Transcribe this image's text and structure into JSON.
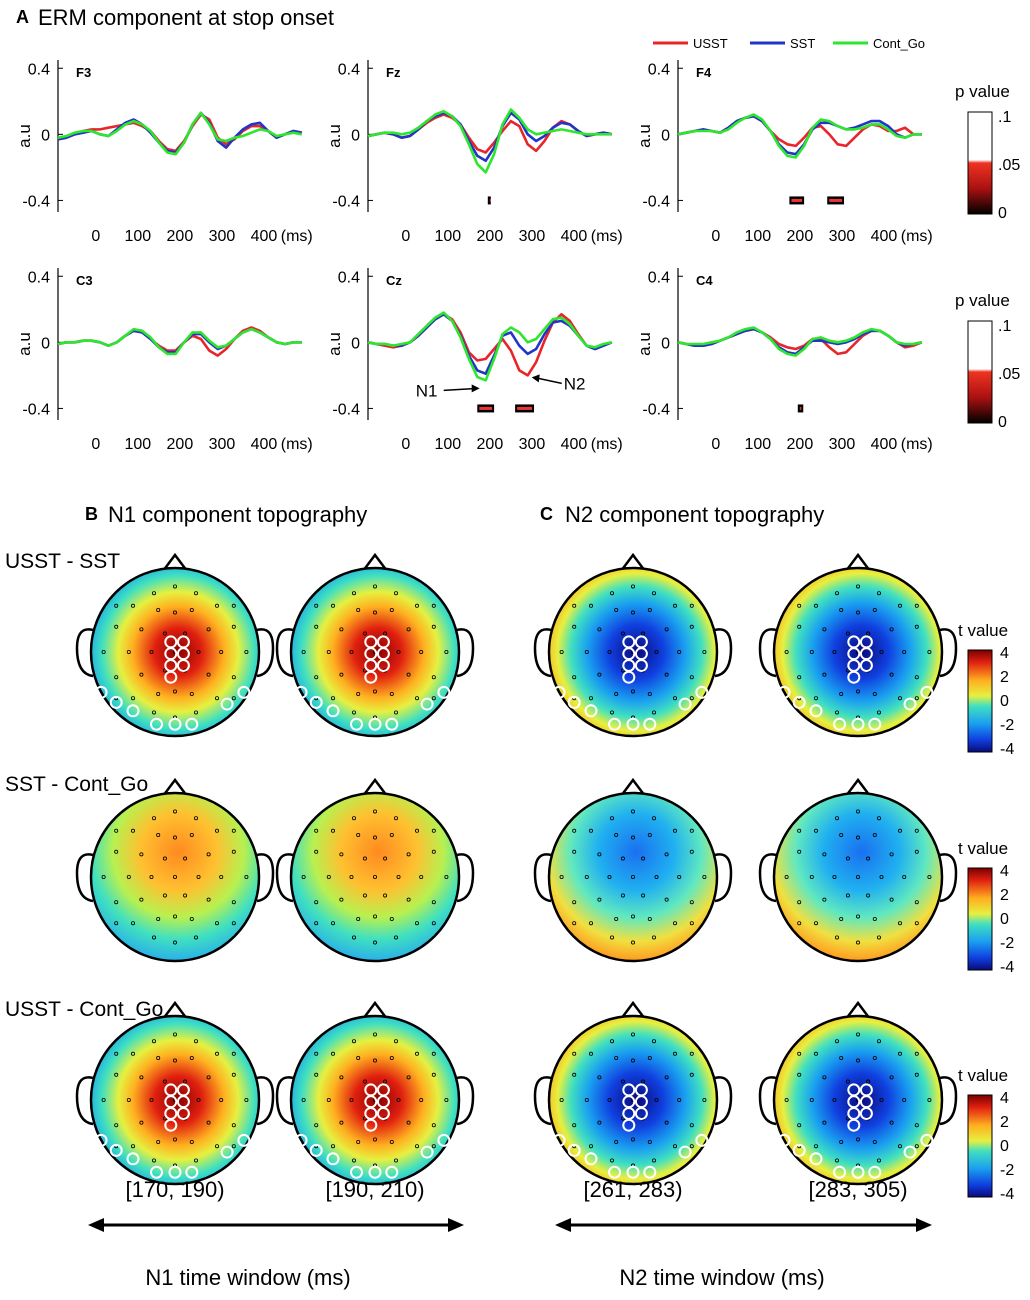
{
  "panel_a": {
    "letter": "A",
    "title": "ERM component at stop onset"
  },
  "panel_b": {
    "letter": "B",
    "title": "N1 component topography"
  },
  "panel_c": {
    "letter": "C",
    "title": "N2 component topography"
  },
  "legend": [
    {
      "label": "USST",
      "color": "#e8262a"
    },
    {
      "label": "SST",
      "color": "#2235c8"
    },
    {
      "label": "Cont_Go",
      "color": "#2ee62e"
    }
  ],
  "erm_axes": {
    "ylabel": "a.u",
    "yticks": [
      "0.4",
      "0",
      "-0.4"
    ],
    "xticks": [
      "0",
      "100",
      "200",
      "300",
      "400"
    ],
    "xunit": "(ms)",
    "xlim": [
      -90,
      500
    ],
    "ylim": [
      -0.47,
      0.45
    ]
  },
  "channels": [
    {
      "name": "F3",
      "sig_bars": []
    },
    {
      "name": "Fz",
      "sig_bars": [
        [
          195,
          200
        ]
      ]
    },
    {
      "name": "F4",
      "sig_bars": [
        [
          175,
          210
        ],
        [
          265,
          305
        ]
      ]
    },
    {
      "name": "C3",
      "sig_bars": []
    },
    {
      "name": "Cz",
      "sig_bars": [
        [
          170,
          210
        ],
        [
          260,
          305
        ]
      ],
      "annotations": [
        "N1",
        "N2"
      ]
    },
    {
      "name": "C4",
      "sig_bars": [
        [
          195,
          208
        ]
      ]
    }
  ],
  "chart_data": [
    {
      "type": "line",
      "title": "ERM component at stop onset",
      "xlabel": "(ms)",
      "ylabel": "a.u",
      "ylim": [
        -0.47,
        0.45
      ],
      "x": [
        -90,
        -70,
        -50,
        -30,
        -10,
        10,
        30,
        50,
        70,
        90,
        110,
        130,
        150,
        170,
        190,
        210,
        230,
        250,
        270,
        290,
        310,
        330,
        350,
        370,
        390,
        410,
        430,
        450,
        470,
        490
      ],
      "panels": [
        {
          "channel": "F3",
          "series": [
            {
              "name": "USST",
              "values": [
                -0.03,
                -0.02,
                0.0,
                0.02,
                0.03,
                0.03,
                0.04,
                0.05,
                0.06,
                0.07,
                0.05,
                0.02,
                -0.04,
                -0.09,
                -0.1,
                -0.04,
                0.05,
                0.12,
                0.09,
                -0.02,
                -0.06,
                -0.03,
                0.02,
                0.05,
                0.05,
                0.02,
                -0.02,
                0.0,
                0.02,
                0.01
              ]
            },
            {
              "name": "SST",
              "values": [
                -0.03,
                -0.02,
                0.0,
                0.01,
                0.02,
                0.0,
                -0.01,
                0.03,
                0.07,
                0.09,
                0.06,
                0.01,
                -0.05,
                -0.1,
                -0.11,
                -0.05,
                0.06,
                0.13,
                0.07,
                -0.04,
                -0.08,
                -0.02,
                0.03,
                0.06,
                0.07,
                0.02,
                -0.02,
                0.0,
                0.02,
                0.01
              ]
            },
            {
              "name": "Cont_Go",
              "values": [
                -0.02,
                -0.01,
                0.01,
                0.02,
                0.02,
                0.0,
                -0.01,
                0.02,
                0.06,
                0.08,
                0.06,
                0.02,
                -0.05,
                -0.11,
                -0.12,
                -0.05,
                0.06,
                0.13,
                0.06,
                -0.03,
                -0.04,
                -0.02,
                -0.01,
                0.01,
                0.03,
                0.02,
                -0.01,
                0.0,
                0.01,
                0.0
              ]
            }
          ]
        },
        {
          "channel": "Fz",
          "series": [
            {
              "name": "USST",
              "values": [
                -0.01,
                0.0,
                0.01,
                0.0,
                -0.02,
                -0.01,
                0.03,
                0.07,
                0.1,
                0.12,
                0.1,
                0.06,
                -0.02,
                -0.09,
                -0.11,
                -0.05,
                0.02,
                0.08,
                0.05,
                -0.06,
                -0.1,
                -0.04,
                0.04,
                0.08,
                0.06,
                0.02,
                -0.01,
                0.0,
                0.01,
                0.0
              ]
            },
            {
              "name": "SST",
              "values": [
                -0.01,
                0.0,
                0.01,
                0.0,
                -0.02,
                -0.01,
                0.03,
                0.08,
                0.11,
                0.13,
                0.11,
                0.06,
                -0.04,
                -0.13,
                -0.16,
                -0.08,
                0.05,
                0.13,
                0.09,
                0.0,
                -0.04,
                -0.01,
                0.04,
                0.07,
                0.06,
                0.02,
                -0.01,
                0.0,
                0.01,
                0.0
              ]
            },
            {
              "name": "Cont_Go",
              "values": [
                -0.01,
                0.0,
                0.01,
                0.01,
                0.0,
                0.01,
                0.04,
                0.08,
                0.12,
                0.14,
                0.11,
                0.05,
                -0.06,
                -0.18,
                -0.23,
                -0.12,
                0.06,
                0.15,
                0.1,
                0.03,
                0.0,
                0.01,
                0.02,
                0.03,
                0.02,
                0.01,
                0.0,
                0.0,
                0.0,
                0.0
              ]
            }
          ]
        },
        {
          "channel": "F4",
          "series": [
            {
              "name": "USST",
              "values": [
                0.0,
                0.01,
                0.02,
                0.03,
                0.02,
                0.01,
                0.04,
                0.08,
                0.1,
                0.11,
                0.08,
                0.02,
                -0.03,
                -0.06,
                -0.07,
                -0.02,
                0.04,
                0.05,
                0.0,
                -0.06,
                -0.07,
                -0.02,
                0.03,
                0.06,
                0.05,
                0.02,
                0.02,
                0.04,
                0.0,
                0.0
              ]
            },
            {
              "name": "SST",
              "values": [
                0.0,
                0.01,
                0.02,
                0.03,
                0.02,
                0.01,
                0.04,
                0.08,
                0.1,
                0.11,
                0.08,
                0.02,
                -0.06,
                -0.11,
                -0.12,
                -0.06,
                0.03,
                0.07,
                0.07,
                0.05,
                0.03,
                0.04,
                0.06,
                0.08,
                0.08,
                0.05,
                0.0,
                -0.02,
                0.0,
                0.0
              ]
            },
            {
              "name": "Cont_Go",
              "values": [
                0.0,
                0.01,
                0.02,
                0.02,
                0.02,
                0.01,
                0.03,
                0.07,
                0.1,
                0.12,
                0.09,
                0.02,
                -0.07,
                -0.13,
                -0.14,
                -0.07,
                0.04,
                0.09,
                0.08,
                0.05,
                0.03,
                0.03,
                0.04,
                0.06,
                0.06,
                0.03,
                -0.01,
                -0.02,
                0.0,
                0.0
              ]
            }
          ]
        },
        {
          "channel": "C3",
          "series": [
            {
              "name": "USST",
              "values": [
                -0.01,
                0.0,
                0.0,
                0.01,
                0.01,
                0.0,
                -0.02,
                0.0,
                0.04,
                0.07,
                0.06,
                0.02,
                -0.02,
                -0.05,
                -0.05,
                0.0,
                0.04,
                0.02,
                -0.05,
                -0.08,
                -0.04,
                0.02,
                0.07,
                0.09,
                0.07,
                0.03,
                0.0,
                -0.01,
                0.0,
                0.0
              ]
            },
            {
              "name": "SST",
              "values": [
                -0.01,
                0.0,
                0.0,
                0.01,
                0.01,
                0.0,
                -0.02,
                0.0,
                0.04,
                0.07,
                0.06,
                0.02,
                -0.03,
                -0.06,
                -0.06,
                0.0,
                0.05,
                0.05,
                0.0,
                -0.04,
                -0.02,
                0.02,
                0.06,
                0.08,
                0.06,
                0.03,
                0.0,
                -0.01,
                0.0,
                0.0
              ]
            },
            {
              "name": "Cont_Go",
              "values": [
                -0.01,
                0.0,
                0.0,
                0.01,
                0.01,
                0.0,
                -0.02,
                0.0,
                0.04,
                0.08,
                0.07,
                0.03,
                -0.03,
                -0.07,
                -0.07,
                0.0,
                0.06,
                0.06,
                0.01,
                -0.03,
                -0.02,
                0.02,
                0.06,
                0.08,
                0.06,
                0.03,
                0.0,
                -0.01,
                0.0,
                0.0
              ]
            }
          ]
        },
        {
          "channel": "Cz",
          "series": [
            {
              "name": "USST",
              "values": [
                0.0,
                -0.01,
                -0.02,
                -0.03,
                -0.02,
                0.0,
                0.04,
                0.09,
                0.14,
                0.17,
                0.14,
                0.06,
                -0.06,
                -0.11,
                -0.1,
                -0.04,
                0.02,
                -0.05,
                -0.17,
                -0.2,
                -0.12,
                0.01,
                0.12,
                0.17,
                0.13,
                0.05,
                -0.02,
                -0.04,
                -0.02,
                0.0
              ]
            },
            {
              "name": "SST",
              "values": [
                0.0,
                -0.01,
                -0.01,
                -0.02,
                -0.02,
                0.0,
                0.04,
                0.09,
                0.14,
                0.17,
                0.13,
                0.04,
                -0.08,
                -0.17,
                -0.19,
                -0.08,
                0.04,
                0.06,
                -0.02,
                -0.07,
                -0.04,
                0.05,
                0.12,
                0.13,
                0.1,
                0.04,
                -0.02,
                -0.04,
                -0.02,
                0.0
              ]
            },
            {
              "name": "Cont_Go",
              "values": [
                0.0,
                -0.01,
                -0.01,
                -0.02,
                -0.01,
                0.0,
                0.05,
                0.1,
                0.15,
                0.18,
                0.13,
                0.03,
                -0.1,
                -0.21,
                -0.23,
                -0.1,
                0.05,
                0.09,
                0.06,
                0.0,
                0.02,
                0.08,
                0.14,
                0.15,
                0.11,
                0.04,
                -0.02,
                -0.03,
                -0.01,
                0.0
              ]
            }
          ]
        },
        {
          "channel": "C4",
          "series": [
            {
              "name": "USST",
              "values": [
                0.0,
                -0.01,
                -0.02,
                -0.02,
                -0.01,
                0.01,
                0.03,
                0.05,
                0.07,
                0.08,
                0.06,
                0.03,
                -0.01,
                -0.03,
                -0.04,
                -0.02,
                0.02,
                0.02,
                -0.03,
                -0.07,
                -0.06,
                -0.01,
                0.04,
                0.07,
                0.07,
                0.04,
                0.0,
                -0.03,
                -0.02,
                0.0
              ]
            },
            {
              "name": "SST",
              "values": [
                0.0,
                -0.01,
                -0.02,
                -0.02,
                -0.01,
                0.01,
                0.03,
                0.05,
                0.07,
                0.08,
                0.06,
                0.02,
                -0.03,
                -0.06,
                -0.07,
                -0.03,
                0.01,
                0.01,
                0.0,
                -0.01,
                0.0,
                0.02,
                0.05,
                0.07,
                0.07,
                0.04,
                0.0,
                -0.02,
                -0.01,
                0.0
              ]
            },
            {
              "name": "Cont_Go",
              "values": [
                0.0,
                -0.01,
                -0.01,
                -0.01,
                0.0,
                0.01,
                0.03,
                0.06,
                0.08,
                0.09,
                0.06,
                0.02,
                -0.04,
                -0.07,
                -0.08,
                -0.04,
                0.02,
                0.03,
                0.01,
                0.0,
                0.01,
                0.03,
                0.06,
                0.08,
                0.07,
                0.04,
                0.0,
                -0.01,
                -0.01,
                0.0
              ]
            }
          ]
        }
      ]
    },
    {
      "type": "heatmap",
      "title": "N1 component topography / N2 component topography",
      "colorbar": {
        "label": "t value",
        "ticks": [
          4,
          2,
          0,
          -2,
          -4
        ],
        "range": [
          -4,
          4
        ]
      },
      "rows": [
        "USST - SST",
        "SST - Cont_Go",
        "USST - Cont_Go"
      ],
      "columns": [
        "[170, 190)",
        "[190, 210)",
        "[261, 283)",
        "[283, 305)"
      ],
      "approx_peak_t": [
        [
          3.5,
          4.0,
          -4.0,
          -3.5
        ],
        [
          1.5,
          2.0,
          -1.5,
          -2.0
        ],
        [
          4.0,
          4.0,
          -4.0,
          -4.0
        ]
      ]
    }
  ],
  "pvalue_colorbar": {
    "label": "p value",
    "ticks": [
      ".1",
      ".05",
      "0"
    ]
  },
  "tvalue_colorbar": {
    "label": "t value",
    "ticks": [
      "4",
      "2",
      "0",
      "-2",
      "-4"
    ]
  },
  "contrasts": [
    {
      "label": "USST - SST",
      "show_colorbar": true
    },
    {
      "label": "SST - Cont_Go",
      "show_colorbar": true
    },
    {
      "label": "USST - Cont_Go",
      "show_colorbar": true
    }
  ],
  "time_windows": {
    "n1": {
      "labels": [
        "[170, 190)",
        "[190, 210)"
      ],
      "axis_label": "N1 time window (ms)"
    },
    "n2": {
      "labels": [
        "[261, 283)",
        "[283, 305)"
      ],
      "axis_label": "N2 time window (ms)"
    }
  }
}
